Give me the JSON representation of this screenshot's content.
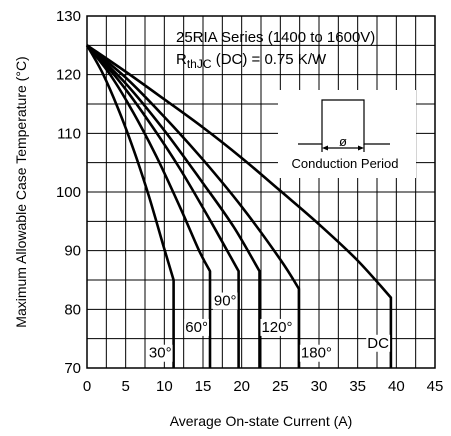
{
  "chart_data": {
    "type": "line",
    "title_lines": [
      "25RIA Series (1400 to 1600V)"
    ],
    "rth_label": {
      "prefix": "R",
      "sub": "thJC",
      "suffix": " (DC) = 0.75 K/W"
    },
    "xlabel": "Average On-state Current (A)",
    "ylabel": "Maximum Allowable Case Temperature (°C)",
    "xlim": [
      0,
      45
    ],
    "ylim": [
      70,
      130
    ],
    "x_ticks": [
      0,
      5,
      10,
      15,
      20,
      25,
      30,
      35,
      40,
      45
    ],
    "y_ticks": [
      70,
      80,
      90,
      100,
      110,
      120,
      130
    ],
    "x_tick_labels": [
      "0",
      "5",
      "10",
      "15",
      "20",
      "25",
      "30",
      "35",
      "40",
      "45"
    ],
    "y_tick_labels": [
      "70",
      "80",
      "90",
      "100",
      "110",
      "120",
      "130"
    ],
    "grid": true,
    "inset": {
      "label": "Conduction Period",
      "symbol": "ø"
    },
    "series": [
      {
        "name": "30°",
        "x": [
          0,
          2,
          4,
          6,
          8,
          10,
          11.2
        ],
        "y": [
          125,
          120.3,
          114.3,
          107.3,
          99.3,
          90.3,
          85
        ],
        "end_x": 11.2,
        "end_y": 70
      },
      {
        "name": "60°",
        "x": [
          0,
          3,
          6,
          9,
          12,
          14.5,
          15.9
        ],
        "y": [
          125,
          120,
          113.5,
          106,
          97.5,
          90,
          86.5
        ],
        "end_x": 15.9,
        "end_y": 70
      },
      {
        "name": "90°",
        "x": [
          0,
          4,
          8,
          12,
          16,
          19.6
        ],
        "y": [
          125,
          119.2,
          112,
          104,
          95,
          86.5
        ],
        "end_x": 19.6,
        "end_y": 70
      },
      {
        "name": "120°",
        "x": [
          0,
          5,
          10,
          15,
          19,
          22.3
        ],
        "y": [
          125,
          118.5,
          110.5,
          101.5,
          94,
          86.5
        ],
        "end_x": 22.3,
        "end_y": 70
      },
      {
        "name": "180°",
        "x": [
          0,
          5,
          10,
          15,
          20,
          25,
          27.4
        ],
        "y": [
          125,
          119.5,
          112.8,
          105.5,
          97.5,
          88.5,
          83.5
        ],
        "end_x": 27.4,
        "end_y": 70
      },
      {
        "name": "DC",
        "x": [
          0,
          5,
          10,
          15,
          20,
          25,
          30,
          35,
          39.3
        ],
        "y": [
          125,
          120.5,
          115.8,
          111,
          105.8,
          100.2,
          94.5,
          88.3,
          82
        ],
        "end_x": 39.3,
        "end_y": 70
      }
    ]
  }
}
